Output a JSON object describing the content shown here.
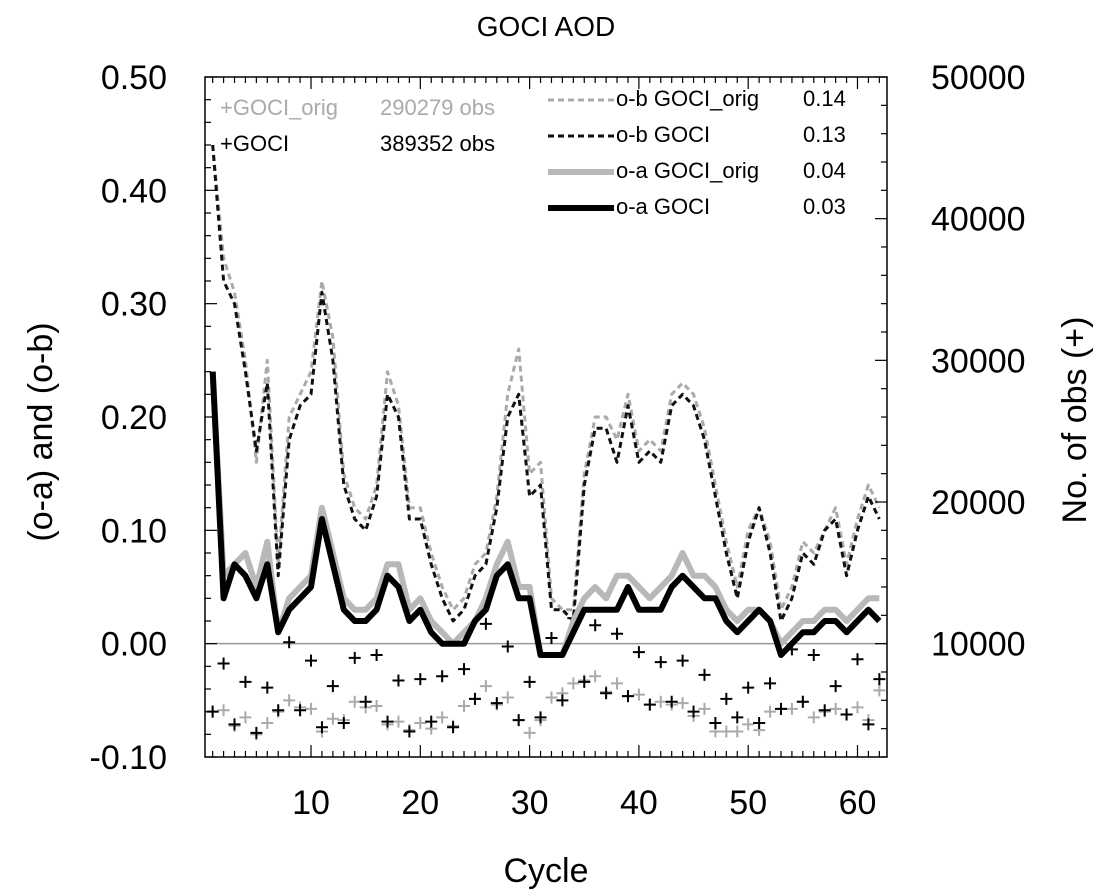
{
  "chart_data": {
    "type": "line",
    "title": "GOCI AOD",
    "xlabel": "Cycle",
    "ylabel": "(o-a) and (o-b)",
    "y2label": "No. of obs (+)",
    "xlim": [
      0.3,
      62.7
    ],
    "ylim": [
      -0.1,
      0.5
    ],
    "y2lim": [
      2000,
      50000
    ],
    "x_ticks": [
      10,
      20,
      30,
      40,
      50,
      60
    ],
    "y_ticks": [
      {
        "value": -0.1,
        "label": "-0.10"
      },
      {
        "value": 0.0,
        "label": "0.00"
      },
      {
        "value": 0.1,
        "label": "0.10"
      },
      {
        "value": 0.2,
        "label": "0.20"
      },
      {
        "value": 0.3,
        "label": "0.30"
      },
      {
        "value": 0.4,
        "label": "0.40"
      },
      {
        "value": 0.5,
        "label": "0.50"
      }
    ],
    "y2_ticks": [
      {
        "value": 10000,
        "label": "10000"
      },
      {
        "value": 20000,
        "label": "20000"
      },
      {
        "value": 30000,
        "label": "30000"
      },
      {
        "value": 40000,
        "label": "40000"
      },
      {
        "value": 50000,
        "label": "50000"
      }
    ],
    "zero_line": 0.0,
    "x": [
      1,
      2,
      3,
      4,
      5,
      6,
      7,
      8,
      9,
      10,
      11,
      12,
      13,
      14,
      15,
      16,
      17,
      18,
      19,
      20,
      21,
      22,
      23,
      24,
      25,
      26,
      27,
      28,
      29,
      30,
      31,
      32,
      33,
      34,
      35,
      36,
      37,
      38,
      39,
      40,
      41,
      42,
      43,
      44,
      45,
      46,
      47,
      48,
      49,
      50,
      51,
      52,
      53,
      54,
      55,
      56,
      57,
      58,
      59,
      60,
      61,
      62
    ],
    "series": [
      {
        "name": "o-b GOCI_orig",
        "stat": "0.14",
        "color": "#aaaaaa",
        "dash": true,
        "width": 3,
        "values": [
          0.44,
          0.34,
          0.31,
          0.25,
          0.16,
          0.25,
          0.07,
          0.2,
          0.22,
          0.24,
          0.32,
          0.27,
          0.15,
          0.12,
          0.11,
          0.14,
          0.24,
          0.21,
          0.12,
          0.12,
          0.08,
          0.05,
          0.03,
          0.04,
          0.07,
          0.08,
          0.13,
          0.22,
          0.26,
          0.15,
          0.16,
          0.04,
          0.03,
          0.03,
          0.15,
          0.2,
          0.2,
          0.18,
          0.22,
          0.17,
          0.18,
          0.17,
          0.22,
          0.23,
          0.22,
          0.19,
          0.14,
          0.09,
          0.05,
          0.1,
          0.12,
          0.09,
          0.03,
          0.05,
          0.09,
          0.08,
          0.1,
          0.12,
          0.07,
          0.11,
          0.14,
          0.12
        ]
      },
      {
        "name": "o-b GOCI",
        "stat": "0.13",
        "color": "#111111",
        "dash": true,
        "width": 3,
        "values": [
          0.44,
          0.32,
          0.3,
          0.24,
          0.17,
          0.23,
          0.06,
          0.18,
          0.21,
          0.22,
          0.31,
          0.25,
          0.14,
          0.11,
          0.1,
          0.13,
          0.22,
          0.2,
          0.11,
          0.11,
          0.07,
          0.04,
          0.02,
          0.03,
          0.06,
          0.07,
          0.12,
          0.2,
          0.22,
          0.13,
          0.14,
          0.03,
          0.03,
          0.02,
          0.14,
          0.19,
          0.19,
          0.16,
          0.21,
          0.16,
          0.17,
          0.16,
          0.21,
          0.22,
          0.21,
          0.18,
          0.13,
          0.08,
          0.04,
          0.09,
          0.12,
          0.08,
          0.02,
          0.04,
          0.08,
          0.07,
          0.1,
          0.11,
          0.06,
          0.1,
          0.13,
          0.11
        ]
      },
      {
        "name": "o-a GOCI_orig",
        "stat": "0.04",
        "color": "#b8b8b8",
        "dash": false,
        "width": 6,
        "values": [
          0.24,
          0.06,
          0.07,
          0.08,
          0.05,
          0.09,
          0.01,
          0.04,
          0.05,
          0.06,
          0.12,
          0.08,
          0.04,
          0.03,
          0.03,
          0.04,
          0.07,
          0.07,
          0.03,
          0.04,
          0.02,
          0.01,
          0.0,
          0.01,
          0.02,
          0.04,
          0.07,
          0.09,
          0.05,
          0.05,
          -0.01,
          -0.01,
          -0.01,
          0.02,
          0.04,
          0.05,
          0.04,
          0.06,
          0.06,
          0.05,
          0.04,
          0.05,
          0.06,
          0.08,
          0.06,
          0.06,
          0.05,
          0.03,
          0.02,
          0.03,
          0.03,
          0.02,
          0.0,
          0.01,
          0.02,
          0.02,
          0.03,
          0.03,
          0.02,
          0.03,
          0.04,
          0.04
        ]
      },
      {
        "name": "o-a GOCI",
        "stat": "0.03",
        "color": "#000000",
        "dash": false,
        "width": 6,
        "values": [
          0.24,
          0.04,
          0.07,
          0.06,
          0.04,
          0.07,
          0.01,
          0.03,
          0.04,
          0.05,
          0.11,
          0.07,
          0.03,
          0.02,
          0.02,
          0.03,
          0.06,
          0.05,
          0.02,
          0.03,
          0.01,
          0.0,
          0.0,
          0.0,
          0.02,
          0.03,
          0.06,
          0.07,
          0.04,
          0.04,
          -0.01,
          -0.01,
          -0.01,
          0.01,
          0.03,
          0.03,
          0.03,
          0.03,
          0.05,
          0.03,
          0.03,
          0.03,
          0.05,
          0.06,
          0.05,
          0.04,
          0.04,
          0.02,
          0.01,
          0.02,
          0.03,
          0.02,
          -0.01,
          0.0,
          0.01,
          0.01,
          0.02,
          0.02,
          0.01,
          0.02,
          0.03,
          0.02
        ]
      }
    ],
    "obs_series": [
      {
        "name": "+GOCI_orig",
        "obs": "290279 obs",
        "color": "#aaaaaa",
        "x": [
          1,
          2,
          3,
          4,
          5,
          6,
          7,
          8,
          9,
          10,
          11,
          12,
          13,
          14,
          15,
          16,
          17,
          18,
          19,
          20,
          21,
          22,
          23,
          24,
          25,
          26,
          27,
          28,
          29,
          30,
          31,
          32,
          33,
          34,
          35,
          36,
          37,
          38,
          39,
          40,
          41,
          42,
          43,
          44,
          45,
          46,
          47,
          48,
          49,
          50,
          51,
          52,
          53,
          54,
          55,
          56,
          57,
          58,
          59,
          60,
          61,
          62
        ],
        "values": [
          5200,
          5300,
          4200,
          4800,
          3600,
          4400,
          5200,
          6000,
          5500,
          5400,
          3800,
          4700,
          4600,
          5900,
          5500,
          5600,
          4300,
          4500,
          3900,
          4400,
          4000,
          4800,
          4200,
          5600,
          6100,
          7000,
          5700,
          6200,
          4600,
          3700,
          4600,
          6200,
          6500,
          7200,
          7400,
          7700,
          6600,
          7200,
          6300,
          6400,
          5700,
          5900,
          5700,
          5800,
          4900,
          5400,
          3800,
          3800,
          3800,
          4300,
          3900,
          5200,
          5400,
          5400,
          5900,
          4800,
          5200,
          5400,
          5000,
          5500,
          4600,
          6700
        ]
      },
      {
        "name": "+GOCI",
        "obs": "389352 obs",
        "color": "#000000",
        "x": [
          1,
          2,
          3,
          4,
          5,
          6,
          7,
          8,
          9,
          10,
          11,
          12,
          13,
          14,
          15,
          16,
          17,
          18,
          19,
          20,
          21,
          22,
          23,
          24,
          25,
          26,
          27,
          28,
          29,
          30,
          31,
          32,
          33,
          34,
          35,
          36,
          37,
          38,
          39,
          40,
          41,
          42,
          43,
          44,
          45,
          46,
          47,
          48,
          49,
          50,
          51,
          52,
          53,
          54,
          55,
          56,
          57,
          58,
          59,
          60,
          61,
          62
        ],
        "values": [
          5200,
          8600,
          4300,
          7300,
          3700,
          6900,
          5300,
          10100,
          5300,
          8800,
          4100,
          7000,
          4400,
          9000,
          5900,
          9200,
          4500,
          7400,
          3800,
          7500,
          4500,
          7700,
          4100,
          8200,
          6100,
          11400,
          5800,
          9800,
          4600,
          7300,
          4800,
          10400,
          6000,
          11800,
          7300,
          11300,
          6500,
          10700,
          6300,
          9400,
          5700,
          8700,
          5900,
          8800,
          5200,
          7800,
          4400,
          6100,
          4800,
          6900,
          4400,
          7200,
          5400,
          9600,
          5900,
          9200,
          5300,
          7000,
          5000,
          8900,
          4300,
          7500
        ]
      }
    ]
  }
}
